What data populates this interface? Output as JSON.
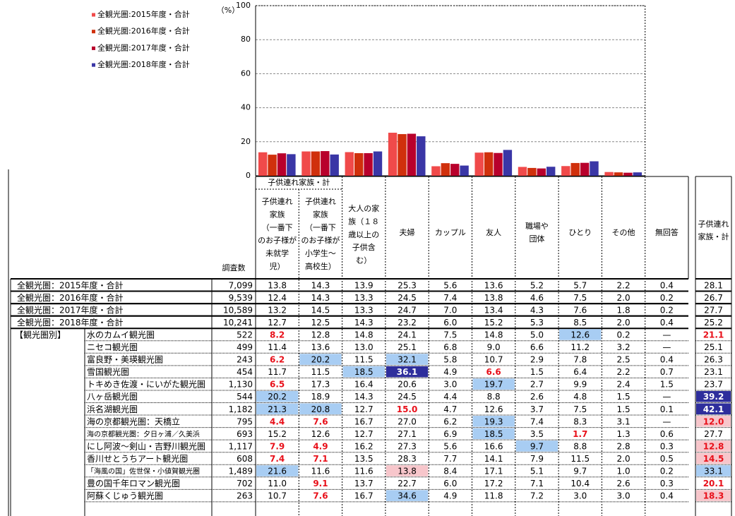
{
  "chart_data": {
    "type": "bar",
    "y_unit": "（%）",
    "ylim": [
      0,
      100
    ],
    "yticks": [
      0,
      20,
      40,
      60,
      80,
      100
    ],
    "grid": true,
    "legend": "top-left",
    "categories": [
      "子供連れ\n家族\n（一番下\nのお子様が\n未就学\n児）",
      "子供連れ\n家族\n（一番下\nのお子様が\n小学生～\n高校生）",
      "大人の家\n族（１８\n歳以上の\n子供含\nむ）",
      "夫婦",
      "カップル",
      "友人",
      "職場や\n団体",
      "ひとり",
      "その他"
    ],
    "series": [
      {
        "name": "全観光圏:2015年度・合計",
        "color": "#f04a4a",
        "values": [
          13.8,
          14.3,
          13.9,
          25.3,
          5.6,
          13.6,
          5.2,
          5.7,
          2.2
        ]
      },
      {
        "name": "全観光圏:2016年度・合計",
        "color": "#d0300c",
        "values": [
          12.4,
          14.3,
          13.3,
          24.5,
          7.4,
          13.8,
          4.6,
          7.5,
          2.0
        ]
      },
      {
        "name": "全観光圏:2017年度・合計",
        "color": "#b8002c",
        "values": [
          13.2,
          14.5,
          13.3,
          24.7,
          7.0,
          13.4,
          4.3,
          7.6,
          1.8
        ]
      },
      {
        "name": "全観光圏:2018年度・合計",
        "color": "#3a36a6",
        "values": [
          12.7,
          12.5,
          14.3,
          23.2,
          6.0,
          15.2,
          5.3,
          8.5,
          2.0
        ]
      }
    ]
  },
  "table": {
    "group_header": "子供連れ家族・計",
    "n_header": "調査数",
    "other_header": "無回答",
    "total_header": "子供連れ\n家族・計",
    "totals": [
      {
        "label": "全観光圏：2015年度・合計",
        "n": "7,099",
        "cells": [
          "13.8",
          "14.3",
          "13.9",
          "25.3",
          "5.6",
          "13.6",
          "5.2",
          "5.7",
          "2.2",
          "0.4"
        ],
        "total": "28.1"
      },
      {
        "label": "全観光圏：2016年度・合計",
        "n": "9,539",
        "cells": [
          "12.4",
          "14.3",
          "13.3",
          "24.5",
          "7.4",
          "13.8",
          "4.6",
          "7.5",
          "2.0",
          "0.2"
        ],
        "total": "26.7"
      },
      {
        "label": "全観光圏：2017年度・合計",
        "n": "10,589",
        "cells": [
          "13.2",
          "14.5",
          "13.3",
          "24.7",
          "7.0",
          "13.4",
          "4.3",
          "7.6",
          "1.8",
          "0.2"
        ],
        "total": "27.7"
      },
      {
        "label": "全観光圏：2018年度・合計",
        "n": "10,241",
        "cells": [
          "12.7",
          "12.5",
          "14.3",
          "23.2",
          "6.0",
          "15.2",
          "5.3",
          "8.5",
          "2.0",
          "0.4"
        ],
        "total": "25.2"
      }
    ],
    "group_label": "【観光圏別】",
    "regions": [
      {
        "label": "水のカムイ観光圏",
        "n": "522",
        "cells": [
          "8.2",
          "12.8",
          "14.8",
          "24.1",
          "7.5",
          "14.8",
          "5.0",
          "12.6",
          "0.2",
          "—"
        ],
        "total": "21.1"
      },
      {
        "label": "ニセコ観光圏",
        "n": "499",
        "cells": [
          "11.4",
          "13.6",
          "13.0",
          "25.1",
          "6.8",
          "9.0",
          "6.6",
          "11.2",
          "3.2",
          "—"
        ],
        "total": "25.1"
      },
      {
        "label": "富良野・美瑛観光圏",
        "n": "243",
        "cells": [
          "6.2",
          "20.2",
          "11.5",
          "32.1",
          "5.8",
          "10.7",
          "2.9",
          "7.8",
          "2.5",
          "0.4"
        ],
        "total": "26.3"
      },
      {
        "label": "雪国観光圏",
        "n": "454",
        "cells": [
          "11.7",
          "11.5",
          "18.5",
          "36.1",
          "4.9",
          "6.6",
          "1.5",
          "6.4",
          "2.2",
          "0.7"
        ],
        "total": "23.1"
      },
      {
        "label": "トキめき佐渡・にいがた観光圏",
        "n": "1,130",
        "cells": [
          "6.5",
          "17.3",
          "16.4",
          "20.6",
          "3.0",
          "19.7",
          "2.7",
          "9.9",
          "2.4",
          "1.5"
        ],
        "total": "23.7"
      },
      {
        "label": "八ヶ岳観光圏",
        "n": "544",
        "cells": [
          "20.2",
          "18.9",
          "14.3",
          "24.5",
          "4.4",
          "8.8",
          "2.6",
          "4.8",
          "1.5",
          "—"
        ],
        "total": "39.2"
      },
      {
        "label": "浜名湖観光圏",
        "n": "1,182",
        "cells": [
          "21.3",
          "20.8",
          "12.7",
          "15.0",
          "4.7",
          "12.6",
          "3.7",
          "7.5",
          "1.5",
          "0.1"
        ],
        "total": "42.1"
      },
      {
        "label": "海の京都観光圏：天橋立",
        "n": "795",
        "cells": [
          "4.4",
          "7.6",
          "16.7",
          "27.0",
          "6.2",
          "19.3",
          "7.4",
          "8.3",
          "3.1",
          "—"
        ],
        "total": "12.0"
      },
      {
        "label": "海の京都観光圏：夕日ヶ浦／久美浜",
        "n": "693",
        "cells": [
          "15.2",
          "12.6",
          "12.7",
          "27.1",
          "6.9",
          "18.5",
          "3.5",
          "1.7",
          "1.3",
          "0.6"
        ],
        "total": "27.7"
      },
      {
        "label": "にし阿波～剣山・吉野川観光圏",
        "n": "1,117",
        "cells": [
          "7.9",
          "4.9",
          "16.2",
          "27.3",
          "5.6",
          "16.6",
          "9.7",
          "8.8",
          "2.8",
          "0.3"
        ],
        "total": "12.8"
      },
      {
        "label": "香川せとうちアート観光圏",
        "n": "608",
        "cells": [
          "7.4",
          "7.1",
          "13.5",
          "28.3",
          "7.7",
          "14.1",
          "7.9",
          "11.5",
          "2.0",
          "0.5"
        ],
        "total": "14.5"
      },
      {
        "label": "「海風の国」佐世保・小値賀観光圏",
        "n": "1,489",
        "cells": [
          "21.6",
          "11.6",
          "11.6",
          "13.8",
          "8.4",
          "17.1",
          "5.1",
          "9.7",
          "1.0",
          "0.2"
        ],
        "total": "33.1"
      },
      {
        "label": "豊の国千年ロマン観光圏",
        "n": "702",
        "cells": [
          "11.0",
          "9.1",
          "13.7",
          "22.7",
          "6.0",
          "17.2",
          "7.1",
          "10.4",
          "2.6",
          "0.3"
        ],
        "total": "20.1"
      },
      {
        "label": "阿蘇くじゅう観光圏",
        "n": "263",
        "cells": [
          "10.7",
          "7.6",
          "16.7",
          "34.6",
          "4.9",
          "11.8",
          "7.2",
          "3.0",
          "3.0",
          "0.4"
        ],
        "total": "18.3"
      }
    ]
  }
}
